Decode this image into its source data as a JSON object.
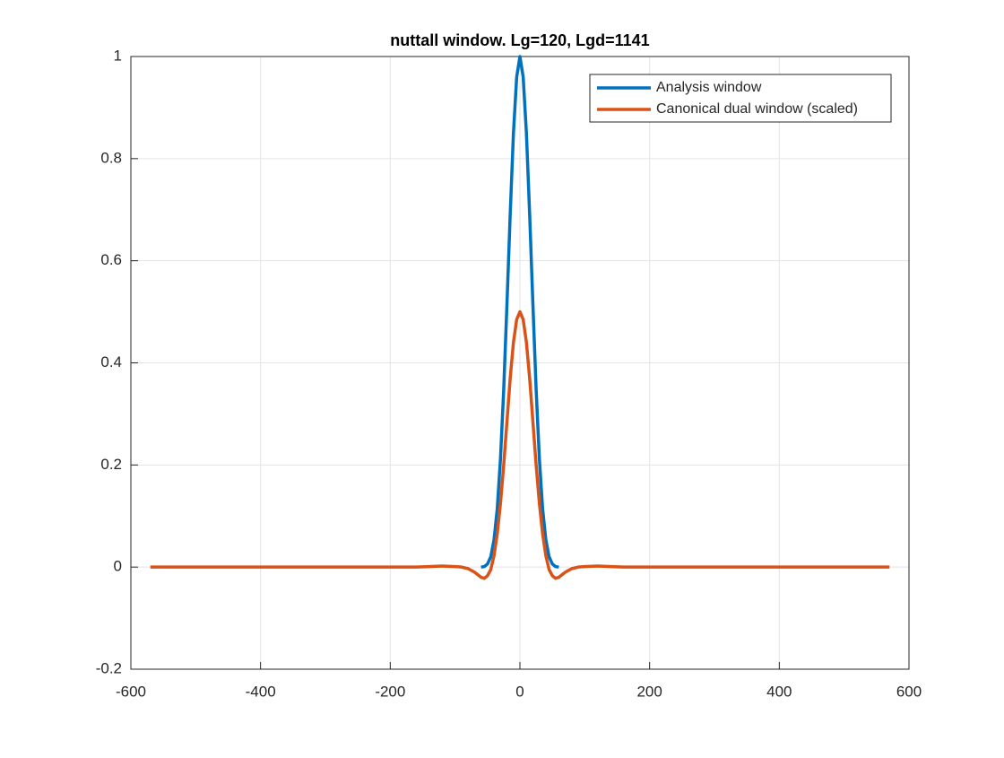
{
  "chart_data": {
    "type": "line",
    "title": "nuttall window. Lg=120, Lgd=1141",
    "xlim": [
      -600,
      600
    ],
    "xticks": [
      -600,
      -400,
      -200,
      0,
      200,
      400,
      600
    ],
    "ylim": [
      -0.2,
      1
    ],
    "yticks": [
      -0.2,
      0,
      0.2,
      0.4,
      0.6,
      0.8,
      1
    ],
    "grid": true,
    "legend": "top-right",
    "series": [
      {
        "name": "Analysis window",
        "color": "#0072bd",
        "x": [
          -60,
          -55,
          -50,
          -45,
          -40,
          -35,
          -30,
          -25,
          -20,
          -15,
          -10,
          -5,
          0,
          5,
          10,
          15,
          20,
          25,
          30,
          35,
          40,
          45,
          50,
          55,
          60
        ],
        "values": [
          0,
          0.001,
          0.006,
          0.02,
          0.053,
          0.114,
          0.212,
          0.348,
          0.515,
          0.691,
          0.85,
          0.96,
          1,
          0.96,
          0.85,
          0.691,
          0.515,
          0.348,
          0.212,
          0.114,
          0.053,
          0.02,
          0.006,
          0.001,
          0
        ]
      },
      {
        "name": "Canonical dual window (scaled)",
        "color": "#d95319",
        "x": [
          -570,
          -160,
          -140,
          -120,
          -100,
          -90,
          -80,
          -70,
          -60,
          -55,
          -50,
          -45,
          -40,
          -35,
          -30,
          -25,
          -20,
          -15,
          -10,
          -5,
          0,
          5,
          10,
          15,
          20,
          25,
          30,
          35,
          40,
          45,
          50,
          55,
          60,
          70,
          80,
          90,
          100,
          120,
          140,
          160,
          570
        ],
        "values": [
          0,
          0,
          0.001,
          0.002,
          0.001,
          0,
          -0.003,
          -0.01,
          -0.02,
          -0.022,
          -0.017,
          -0.005,
          0.022,
          0.065,
          0.125,
          0.2,
          0.285,
          0.37,
          0.44,
          0.485,
          0.5,
          0.485,
          0.44,
          0.37,
          0.285,
          0.2,
          0.125,
          0.065,
          0.022,
          -0.005,
          -0.017,
          -0.022,
          -0.02,
          -0.01,
          -0.003,
          0,
          0.001,
          0.002,
          0.001,
          0,
          0
        ]
      }
    ]
  }
}
